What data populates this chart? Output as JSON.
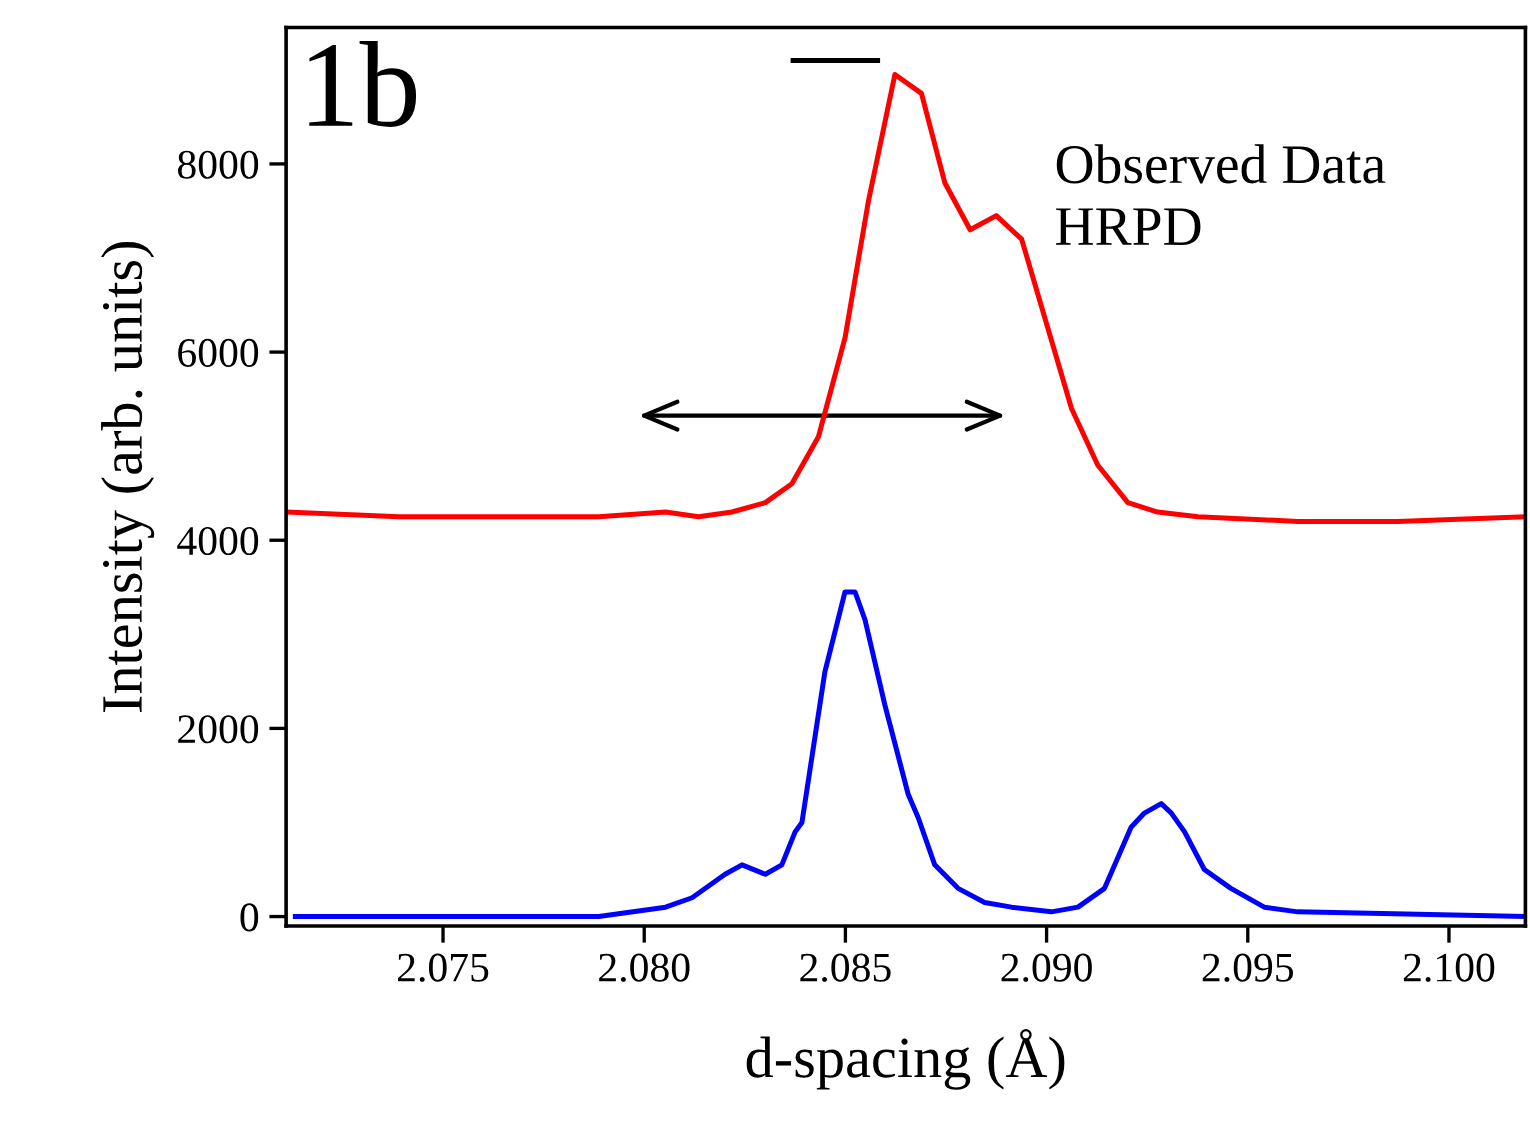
{
  "chart_data": {
    "type": "line",
    "xlabel": "d-spacing (Å)",
    "ylabel": "Intensity (arb. units)",
    "annotations": [
      "1b",
      "Observed Data\nHRPD"
    ],
    "xlim": [
      2.0711,
      2.1019
    ],
    "ylim": [
      -100,
      9450
    ],
    "xticks": [
      {
        "value": 2.075,
        "label": "2.075"
      },
      {
        "value": 2.08,
        "label": "2.080"
      },
      {
        "value": 2.085,
        "label": "2.085"
      },
      {
        "value": 2.09,
        "label": "2.090"
      },
      {
        "value": 2.095,
        "label": "2.095"
      },
      {
        "value": 2.1,
        "label": "2.100"
      }
    ],
    "yticks": [
      0,
      2000,
      4000,
      6000,
      8000
    ],
    "grid": false,
    "legend": false,
    "marker": "none",
    "line_style": "solid",
    "series": [
      {
        "color": "#ff0000",
        "x": [
          2.0711,
          2.07391,
          2.07639,
          2.07887,
          2.08053,
          2.08135,
          2.08218,
          2.08301,
          2.08367,
          2.08433,
          2.08499,
          2.08557,
          2.08623,
          2.08689,
          2.08747,
          2.0881,
          2.08875,
          2.08938,
          2.09062,
          2.09127,
          2.09202,
          2.09276,
          2.09376,
          2.09624,
          2.09872,
          2.1019
        ],
        "values": [
          4300,
          4250,
          4250,
          4250,
          4300,
          4250,
          4300,
          4400,
          4600,
          5100,
          6150,
          7600,
          8950,
          8750,
          7800,
          7300,
          7450,
          7200,
          5400,
          4800,
          4400,
          4300,
          4250,
          4200,
          4200,
          4250
        ]
      },
      {
        "color": "#0000ff",
        "x": [
          2.07133,
          2.07887,
          2.08053,
          2.08119,
          2.08201,
          2.08243,
          2.08301,
          2.08342,
          2.08375,
          2.08392,
          2.08449,
          2.08499,
          2.08524,
          2.08549,
          2.08598,
          2.08656,
          2.08681,
          2.08722,
          2.0878,
          2.08846,
          2.08913,
          2.09012,
          2.09078,
          2.09144,
          2.0921,
          2.09243,
          2.09285,
          2.0931,
          2.09343,
          2.09392,
          2.09458,
          2.09541,
          2.09624,
          2.1019
        ],
        "values": [
          0,
          0,
          100,
          200,
          450,
          550,
          450,
          550,
          900,
          1000,
          2600,
          3450,
          3450,
          3150,
          2250,
          1300,
          1050,
          550,
          300,
          150,
          100,
          50,
          100,
          300,
          950,
          1100,
          1200,
          1100,
          900,
          500,
          300,
          100,
          50,
          0
        ]
      },
      {
        "color": "#000000",
        "x": [
          2.0837,
          2.0858
        ],
        "values": [
          9100,
          9100
        ]
      }
    ]
  }
}
